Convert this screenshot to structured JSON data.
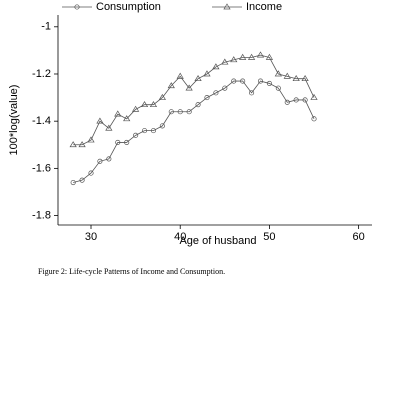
{
  "chart_data": {
    "type": "line",
    "x_label": "Age of husband",
    "y_label": "100*log(value)",
    "caption": "Figure 2: Life-cycle Patterns of Income and Consumption.",
    "x": [
      28,
      29,
      30,
      31,
      32,
      33,
      34,
      35,
      36,
      37,
      38,
      39,
      40,
      41,
      42,
      43,
      44,
      45,
      46,
      47,
      48,
      49,
      50,
      51,
      52,
      53,
      54,
      55
    ],
    "series": [
      {
        "name": "Consumption",
        "color": "#555555",
        "marker": "circle",
        "values": [
          -1.66,
          -1.65,
          -1.62,
          -1.57,
          -1.56,
          -1.49,
          -1.49,
          -1.46,
          -1.44,
          -1.44,
          -1.42,
          -1.36,
          -1.36,
          -1.36,
          -1.33,
          -1.3,
          -1.28,
          -1.26,
          -1.23,
          -1.23,
          -1.28,
          -1.23,
          -1.24,
          -1.26,
          -1.32,
          -1.31,
          -1.31,
          -1.39
        ]
      },
      {
        "name": "Income",
        "color": "#555555",
        "marker": "triangle",
        "values": [
          -1.5,
          -1.5,
          -1.48,
          -1.4,
          -1.43,
          -1.37,
          -1.39,
          -1.35,
          -1.33,
          -1.33,
          -1.3,
          -1.25,
          -1.21,
          -1.26,
          -1.22,
          -1.2,
          -1.17,
          -1.15,
          -1.14,
          -1.13,
          -1.13,
          -1.12,
          -1.13,
          -1.2,
          -1.21,
          -1.22,
          -1.22,
          -1.3
        ]
      }
    ],
    "xlim": [
      26.3,
      61.5
    ],
    "xticks": [
      30,
      40,
      50,
      60
    ],
    "ylim": [
      -1.84,
      -0.95
    ],
    "yticks": [
      -1,
      -1.2,
      -1.4,
      -1.6,
      -1.8
    ]
  }
}
